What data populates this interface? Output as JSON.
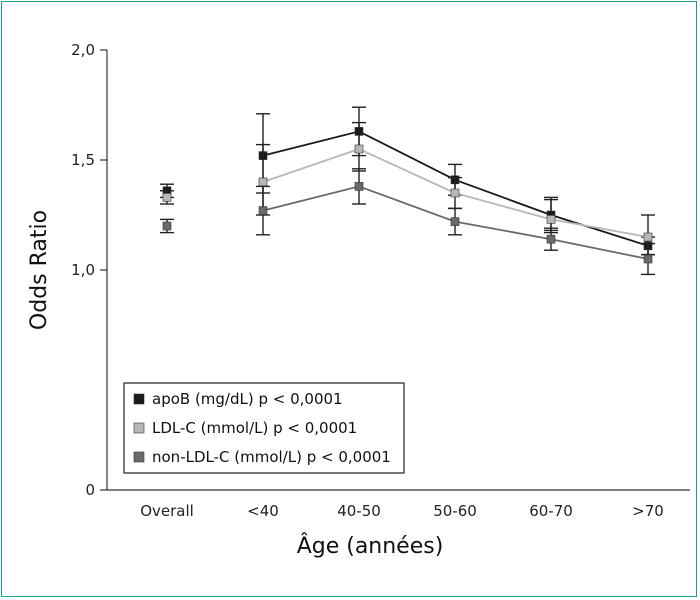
{
  "chart_data": {
    "type": "line",
    "xlabel": "Âge (années)",
    "ylabel": "Odds Ratio",
    "categories": [
      "Overall",
      "<40",
      "40-50",
      "50-60",
      "60-70",
      ">70"
    ],
    "ylim": [
      0,
      2.0
    ],
    "y_ticks": [
      {
        "value": 0,
        "label": "0"
      },
      {
        "value": 1.0,
        "label": "1,0"
      },
      {
        "value": 1.5,
        "label": "1,5"
      },
      {
        "value": 2.0,
        "label": "2,0"
      }
    ],
    "grid": false,
    "legend_position": "lower-left",
    "series": [
      {
        "name": "apoB (mg/dL) p < 0,0001",
        "color": "#1a1a1a",
        "values": [
          1.36,
          1.52,
          1.63,
          1.41,
          1.25,
          1.11
        ],
        "ci_low": [
          1.33,
          1.35,
          1.52,
          1.34,
          1.18,
          1.07
        ],
        "ci_high": [
          1.39,
          1.71,
          1.74,
          1.48,
          1.32,
          1.15
        ]
      },
      {
        "name": "LDL-C (mmol/L) p < 0,0001",
        "color": "#b8b8b8",
        "values": [
          1.33,
          1.4,
          1.55,
          1.35,
          1.23,
          1.15
        ],
        "ci_low": [
          1.3,
          1.25,
          1.45,
          1.28,
          1.17,
          1.07
        ],
        "ci_high": [
          1.36,
          1.57,
          1.67,
          1.42,
          1.33,
          1.25
        ]
      },
      {
        "name": "non-LDL-C (mmol/L) p < 0,0001",
        "color": "#6a6a6a",
        "values": [
          1.2,
          1.27,
          1.38,
          1.22,
          1.14,
          1.05
        ],
        "ci_low": [
          1.17,
          1.16,
          1.3,
          1.16,
          1.09,
          0.98
        ],
        "ci_high": [
          1.23,
          1.38,
          1.46,
          1.28,
          1.19,
          1.12
        ]
      }
    ]
  }
}
